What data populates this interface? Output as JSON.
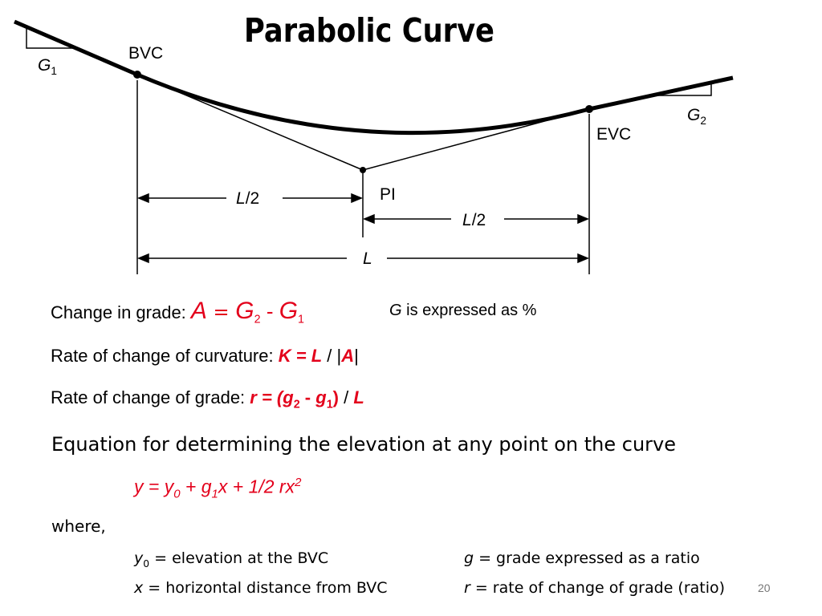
{
  "title": "Parabolic Curve",
  "diagram": {
    "bvc": "BVC",
    "evc": "EVC",
    "pi": "PI",
    "g1_letter": "G",
    "g1_sub": "1",
    "g2_letter": "G",
    "g2_sub": "2",
    "half_length_var": "L",
    "half_length_den": "/2",
    "length_var": "L"
  },
  "line_change_grade": {
    "label": "Change in grade: ",
    "formula_a": "A",
    "formula_eq": " = ",
    "formula_g2": "G",
    "formula_g2_sub": "2",
    "formula_minus": " - ",
    "formula_g1": "G",
    "formula_g1_sub": "1",
    "note_g": "G",
    "note_text": " is expressed as %"
  },
  "line_rate_curvature": {
    "label": "Rate of change of curvature: ",
    "formula_main": "K = L",
    "formula_rest": " / |",
    "formula_a": "A",
    "formula_end": "|"
  },
  "line_rate_grade": {
    "label": "Rate of change of grade: ",
    "formula_start": "r = (",
    "g2": "g",
    "g2_sub": "2",
    "minus": " - ",
    "g1": "g",
    "g1_sub": "1",
    "close": ")",
    "slash": " / ",
    "l": "L"
  },
  "equation_heading": "Equation for determining the elevation at any point on the curve",
  "equation": {
    "part1": "y = y",
    "sub0": "0",
    "part2": " + g",
    "sub1": "1",
    "part3": "x + 1/2 rx",
    "sup2": "2"
  },
  "where_label": "where,",
  "definitions": {
    "y0_var": "y",
    "y0_sub": "0",
    "y0_text": " = elevation at the BVC",
    "x_var": "x",
    "x_text": " = horizontal distance from BVC",
    "g_var": "g",
    "g_text": " = grade expressed as a ratio",
    "r_var": "r",
    "r_text": " = rate of change of grade (ratio)"
  },
  "page_number": "20"
}
